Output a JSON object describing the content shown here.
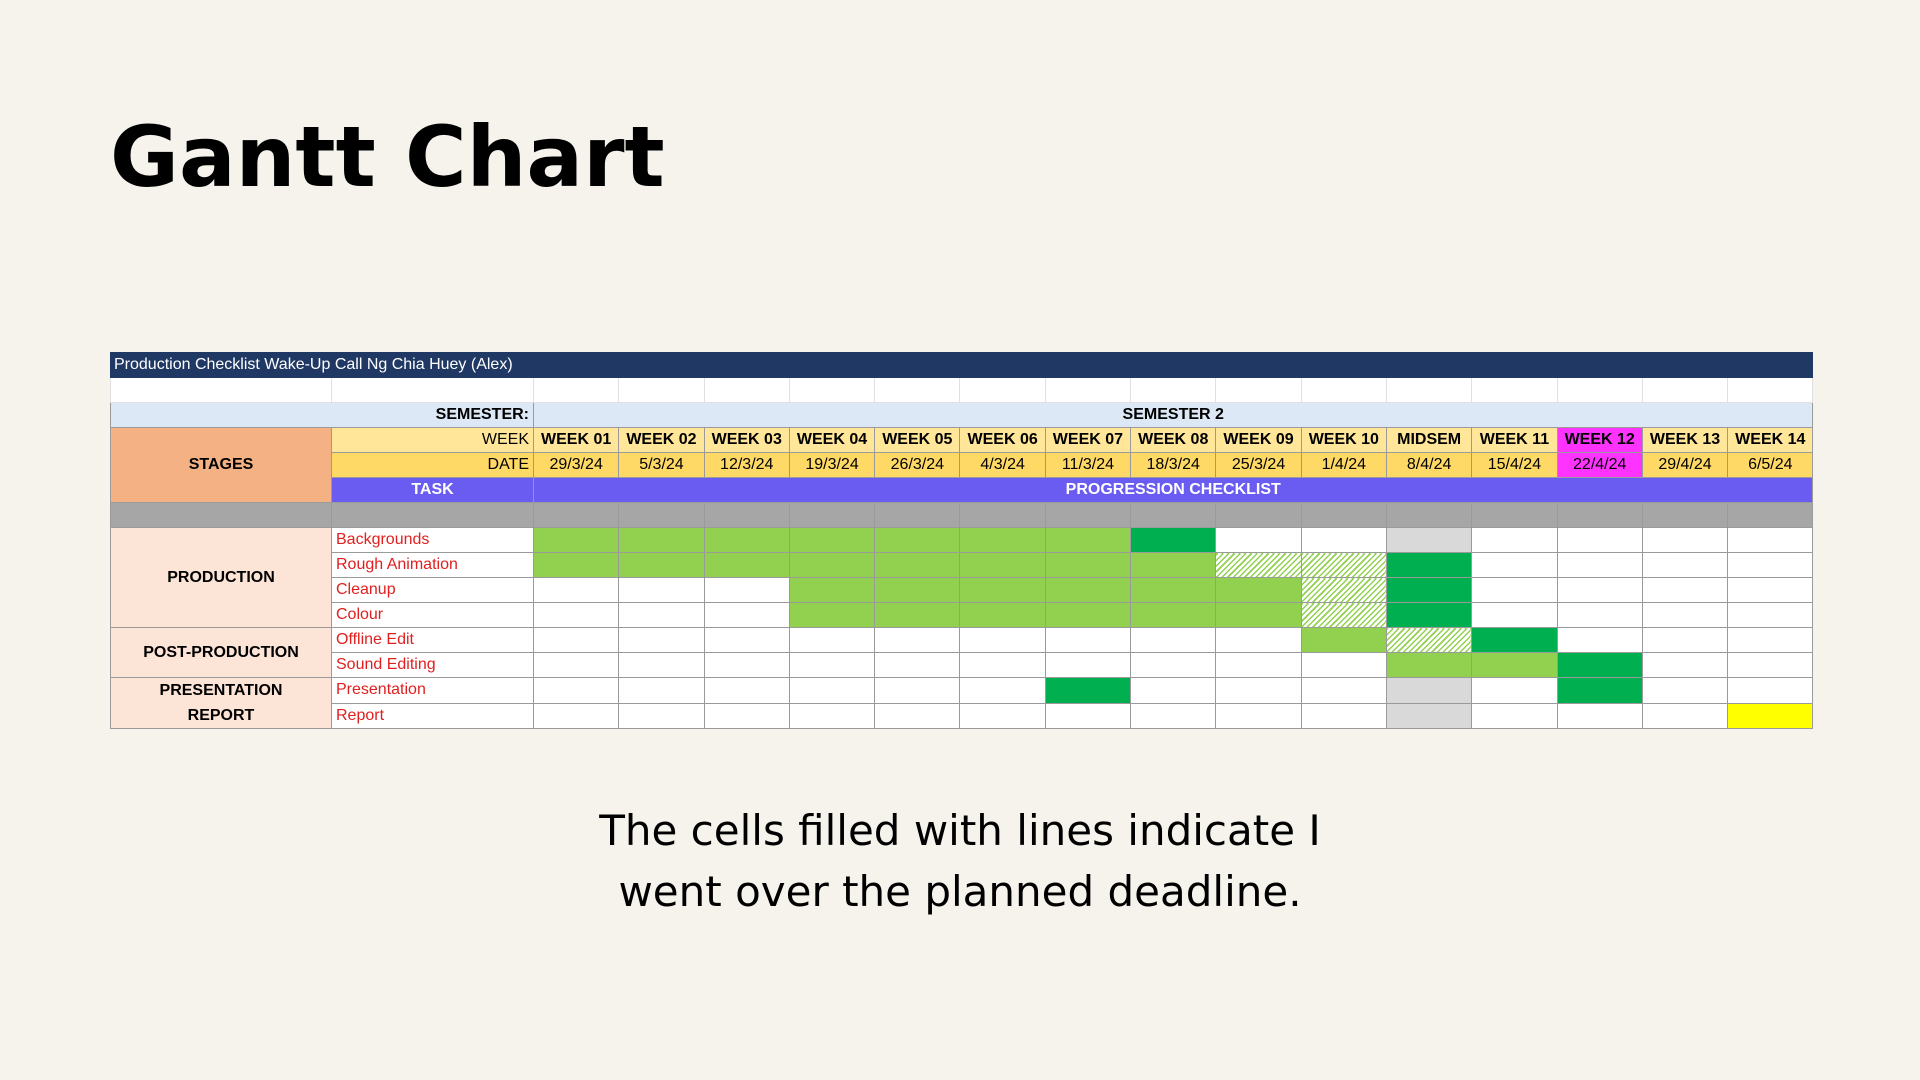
{
  "page": {
    "title": "Gantt Chart",
    "caption_line1": "The cells filled with lines indicate I",
    "caption_line2": "went over the planned deadline."
  },
  "sheet": {
    "sheet_title": "Production Checklist Wake-Up Call Ng Chia Huey (Alex)",
    "semester_label": "SEMESTER:",
    "semester_value": "SEMESTER 2",
    "stages_label": "STAGES",
    "week_label": "WEEK",
    "date_label": "DATE",
    "task_label": "TASK",
    "checklist_label": "PROGRESSION CHECKLIST",
    "weeks": [
      "WEEK 01",
      "WEEK 02",
      "WEEK 03",
      "WEEK 04",
      "WEEK 05",
      "WEEK 06",
      "WEEK 07",
      "WEEK 08",
      "WEEK 09",
      "WEEK 10",
      "MIDSEM",
      "WEEK 11",
      "WEEK 12",
      "WEEK 13",
      "WEEK 14"
    ],
    "dates": [
      "29/3/24",
      "5/3/24",
      "12/3/24",
      "19/3/24",
      "26/3/24",
      "4/3/24",
      "11/3/24",
      "18/3/24",
      "25/3/24",
      "1/4/24",
      "8/4/24",
      "15/4/24",
      "22/4/24",
      "29/4/24",
      "6/5/24"
    ],
    "highlight_week_index": 12,
    "stage_groups": {
      "production": "PRODUCTION",
      "post_production": "POST-PRODUCTION",
      "presentation": "PRESENTATION",
      "report": "REPORT"
    },
    "colors": {
      "planned_done": "#92d050",
      "completed_milestone": "#00b050",
      "overdue_hatched": "#92d050",
      "midsem_break": "#d9d9d9",
      "final_deadline": "#ffff00",
      "highlight_week": "#ff33ff"
    },
    "tasks": [
      {
        "name": "Backgrounds",
        "cells": [
          "lg",
          "lg",
          "lg",
          "lg",
          "lg",
          "lg",
          "lg",
          "dg",
          "",
          "",
          "gr",
          "",
          "",
          "",
          ""
        ]
      },
      {
        "name": "Rough Animation",
        "cells": [
          "lg",
          "lg",
          "lg",
          "lg",
          "lg",
          "lg",
          "lg",
          "lg",
          "ha",
          "ha",
          "dg",
          "",
          "",
          "",
          ""
        ]
      },
      {
        "name": "Cleanup",
        "cells": [
          "",
          "",
          "",
          "lg",
          "lg",
          "lg",
          "lg",
          "lg",
          "lg",
          "ha",
          "dg",
          "",
          "",
          "",
          ""
        ]
      },
      {
        "name": "Colour",
        "cells": [
          "",
          "",
          "",
          "lg",
          "lg",
          "lg",
          "lg",
          "lg",
          "lg",
          "ha",
          "dg",
          "",
          "",
          "",
          ""
        ]
      },
      {
        "name": "Offline Edit",
        "cells": [
          "",
          "",
          "",
          "",
          "",
          "",
          "",
          "",
          "",
          "lg",
          "ha",
          "dg",
          "",
          "",
          ""
        ]
      },
      {
        "name": "Sound Editing",
        "cells": [
          "",
          "",
          "",
          "",
          "",
          "",
          "",
          "",
          "",
          "",
          "lg",
          "lg",
          "dg",
          "",
          ""
        ]
      },
      {
        "name": "Presentation",
        "cells": [
          "",
          "",
          "",
          "",
          "",
          "",
          "dg",
          "",
          "",
          "",
          "gr",
          "",
          "dg",
          "",
          ""
        ]
      },
      {
        "name": "Report",
        "cells": [
          "",
          "",
          "",
          "",
          "",
          "",
          "",
          "",
          "",
          "",
          "gr",
          "",
          "",
          "",
          "ye"
        ]
      }
    ]
  }
}
